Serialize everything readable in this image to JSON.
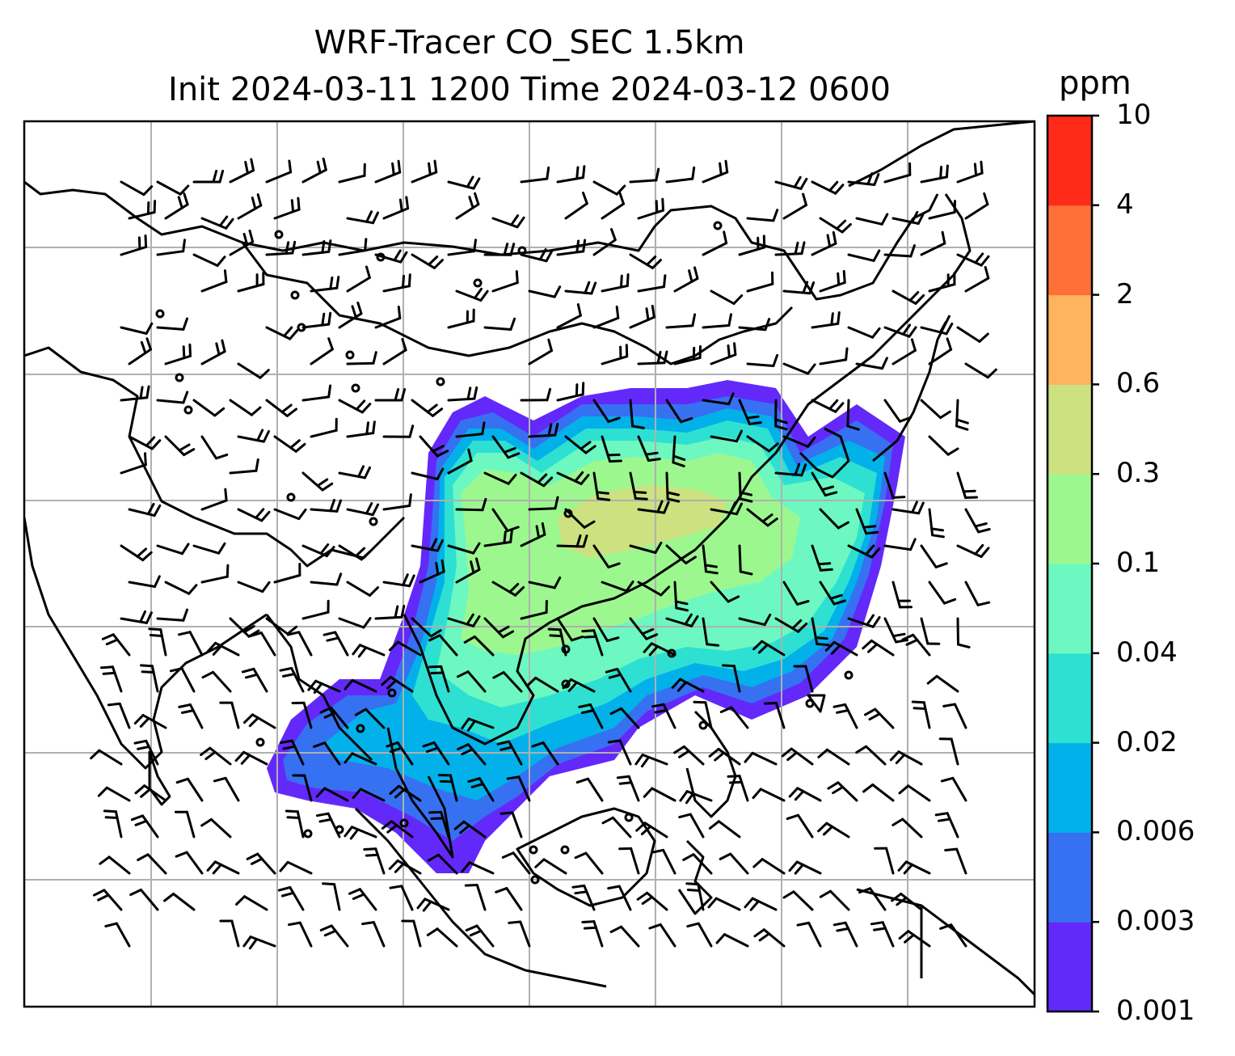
{
  "title": {
    "line1": "WRF-Tracer CO_SEC 1.5km",
    "line2": "Init 2024-03-11 1200 Time 2024-03-12 0600"
  },
  "colorbar": {
    "unit": "ppm",
    "levels": [
      "0.001",
      "0.003",
      "0.006",
      "0.02",
      "0.04",
      "0.1",
      "0.3",
      "0.6",
      "2",
      "4",
      "10"
    ],
    "colors": [
      "#6329fb",
      "#3671f1",
      "#02b1ea",
      "#2ee0d2",
      "#6cf8c0",
      "#9cf88e",
      "#cde180",
      "#feb35e",
      "#ff7039",
      "#ff2a17"
    ]
  },
  "map": {
    "gridlines": "on",
    "coastline_color": "#000000",
    "grid_color": "#b0b0b0"
  }
}
